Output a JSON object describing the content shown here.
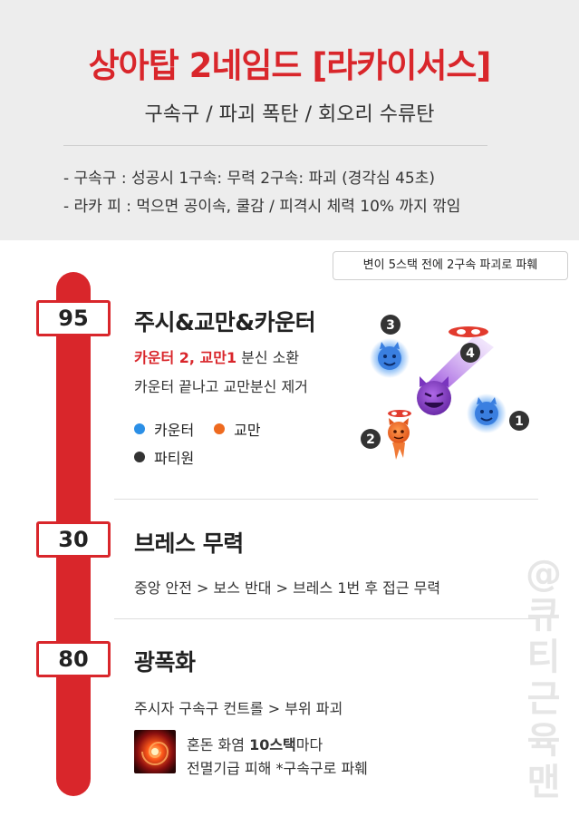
{
  "header": {
    "title": "상아탑 2네임드 [라카이서스]",
    "subtitle": "구속구 / 파괴 폭탄 / 회오리 수류탄",
    "note1": "- 구속구  : 성공시 1구속: 무력  2구속: 파괴 (경각심 45초)",
    "note2": "- 라카 피 : 먹으면 공이속, 쿨감 / 피격시 체력 10% 까지 깎임"
  },
  "tip": "변이 5스택 전에 2구속 파괴로 파훼",
  "sections": [
    {
      "hp": "95",
      "title": "주시&교만&카운터",
      "line1_red": "카운터 2, 교만1",
      "line1_rest": " 분신 소환",
      "line2": "카운터 끝나고 교만분신 제거",
      "legend": [
        {
          "label": "카운터",
          "color": "#2b8fe6"
        },
        {
          "label": "교만",
          "color": "#ee6a1f"
        },
        {
          "label": "파티원",
          "color": "#333333"
        }
      ],
      "markers": [
        "1",
        "2",
        "3",
        "4"
      ]
    },
    {
      "hp": "30",
      "title": "브레스 무력",
      "line1": "중앙 안전 > 보스 반대 > 브레스 1번 후 접근 무력"
    },
    {
      "hp": "80",
      "title": "광폭화",
      "line1": "주시자 구속구 컨트롤 > 부위 파괴",
      "skill_line1_pre": "혼돈 화염 ",
      "skill_line1_bold": "10스택",
      "skill_line1_post": "마다",
      "skill_line2": "전멸기급 피해  *구속구로 파훼"
    }
  ],
  "watermark": [
    "@",
    "큐",
    "티",
    "근",
    "육",
    "맨"
  ],
  "colors": {
    "accent": "#d9262b",
    "counter": "#2b8fe6",
    "pride": "#ee6a1f",
    "party": "#333333"
  }
}
